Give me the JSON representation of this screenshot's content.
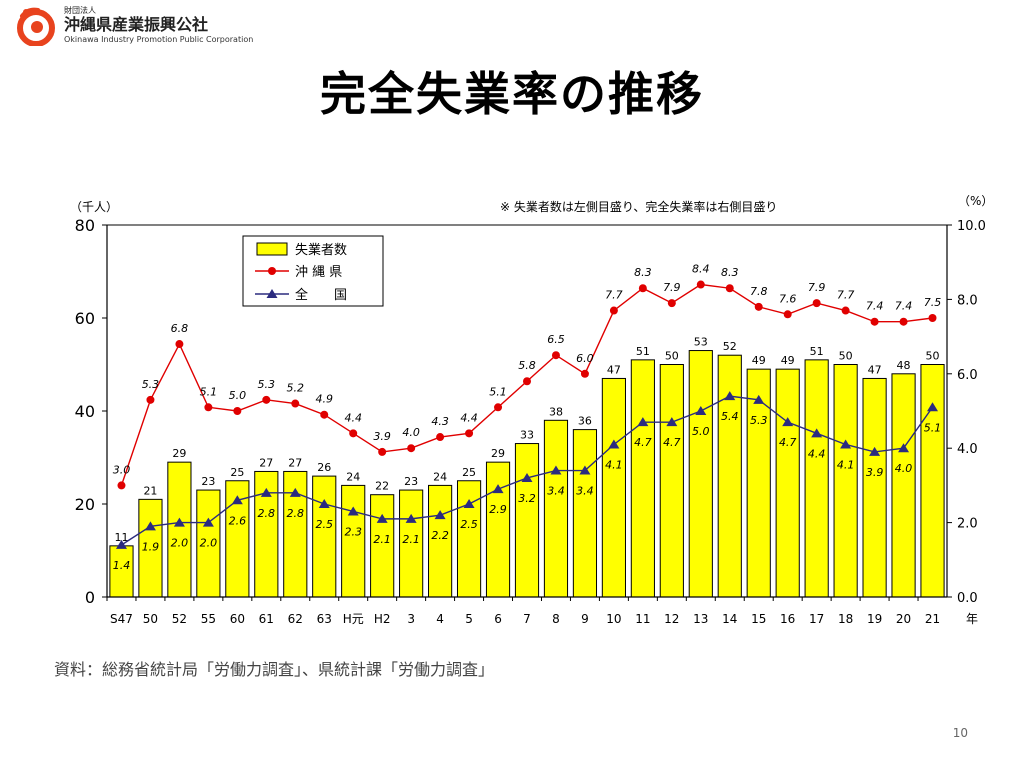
{
  "header": {
    "org_small": "財団法人",
    "org_name": "沖縄県産業振興公社",
    "org_english": "Okinawa Industry Promotion Public Corporation"
  },
  "slide": {
    "title": "完全失業率の推移",
    "source": "資料：総務省統計局「労働力調査」、県統計課「労働力調査」",
    "page_number": "10"
  },
  "colors": {
    "bar": "#FFFF00",
    "okinawa": "#E00000",
    "national": "#2B2B7F",
    "logo": "#E8431E"
  },
  "chart_data": {
    "type": "bar",
    "note": "※ 失業者数は左側目盛り、完全失業率は右側目盛り",
    "left_unit": "（千人）",
    "right_unit": "（%）",
    "x_unit": "年",
    "categories": [
      "S47",
      "50",
      "52",
      "55",
      "60",
      "61",
      "62",
      "63",
      "H元",
      "H2",
      "3",
      "4",
      "5",
      "6",
      "7",
      "8",
      "9",
      "10",
      "11",
      "12",
      "13",
      "14",
      "15",
      "16",
      "17",
      "18",
      "19",
      "20",
      "21"
    ],
    "ylim_left": [
      0,
      80
    ],
    "yticks_left": [
      "0",
      "20",
      "40",
      "60",
      "80"
    ],
    "ylim_right": [
      0,
      10
    ],
    "yticks_right": [
      "0.0",
      "2.0",
      "4.0",
      "6.0",
      "8.0",
      "10.0"
    ],
    "grid": false,
    "legend_position": "top-left",
    "series": [
      {
        "name": "失業者数",
        "type": "bar",
        "axis": "left",
        "values": [
          11,
          21,
          29,
          23,
          25,
          27,
          27,
          26,
          24,
          22,
          23,
          24,
          25,
          29,
          33,
          38,
          36,
          47,
          51,
          50,
          53,
          52,
          49,
          49,
          51,
          50,
          47,
          48,
          50
        ]
      },
      {
        "name": "沖 縄 県",
        "type": "line",
        "axis": "right",
        "values": [
          3.0,
          5.3,
          6.8,
          5.1,
          5.0,
          5.3,
          5.2,
          4.9,
          4.4,
          3.9,
          4.0,
          4.3,
          4.4,
          5.1,
          5.8,
          6.5,
          6.0,
          7.7,
          8.3,
          7.9,
          8.4,
          8.3,
          7.8,
          7.6,
          7.9,
          7.7,
          7.4,
          7.4,
          7.5
        ]
      },
      {
        "name": "全　　国",
        "type": "line",
        "axis": "right",
        "values": [
          1.4,
          1.9,
          2.0,
          2.0,
          2.6,
          2.8,
          2.8,
          2.5,
          2.3,
          2.1,
          2.1,
          2.2,
          2.5,
          2.9,
          3.2,
          3.4,
          3.4,
          4.1,
          4.7,
          4.7,
          5.0,
          5.4,
          5.3,
          4.7,
          4.4,
          4.1,
          3.9,
          4.0,
          5.1
        ]
      }
    ]
  }
}
